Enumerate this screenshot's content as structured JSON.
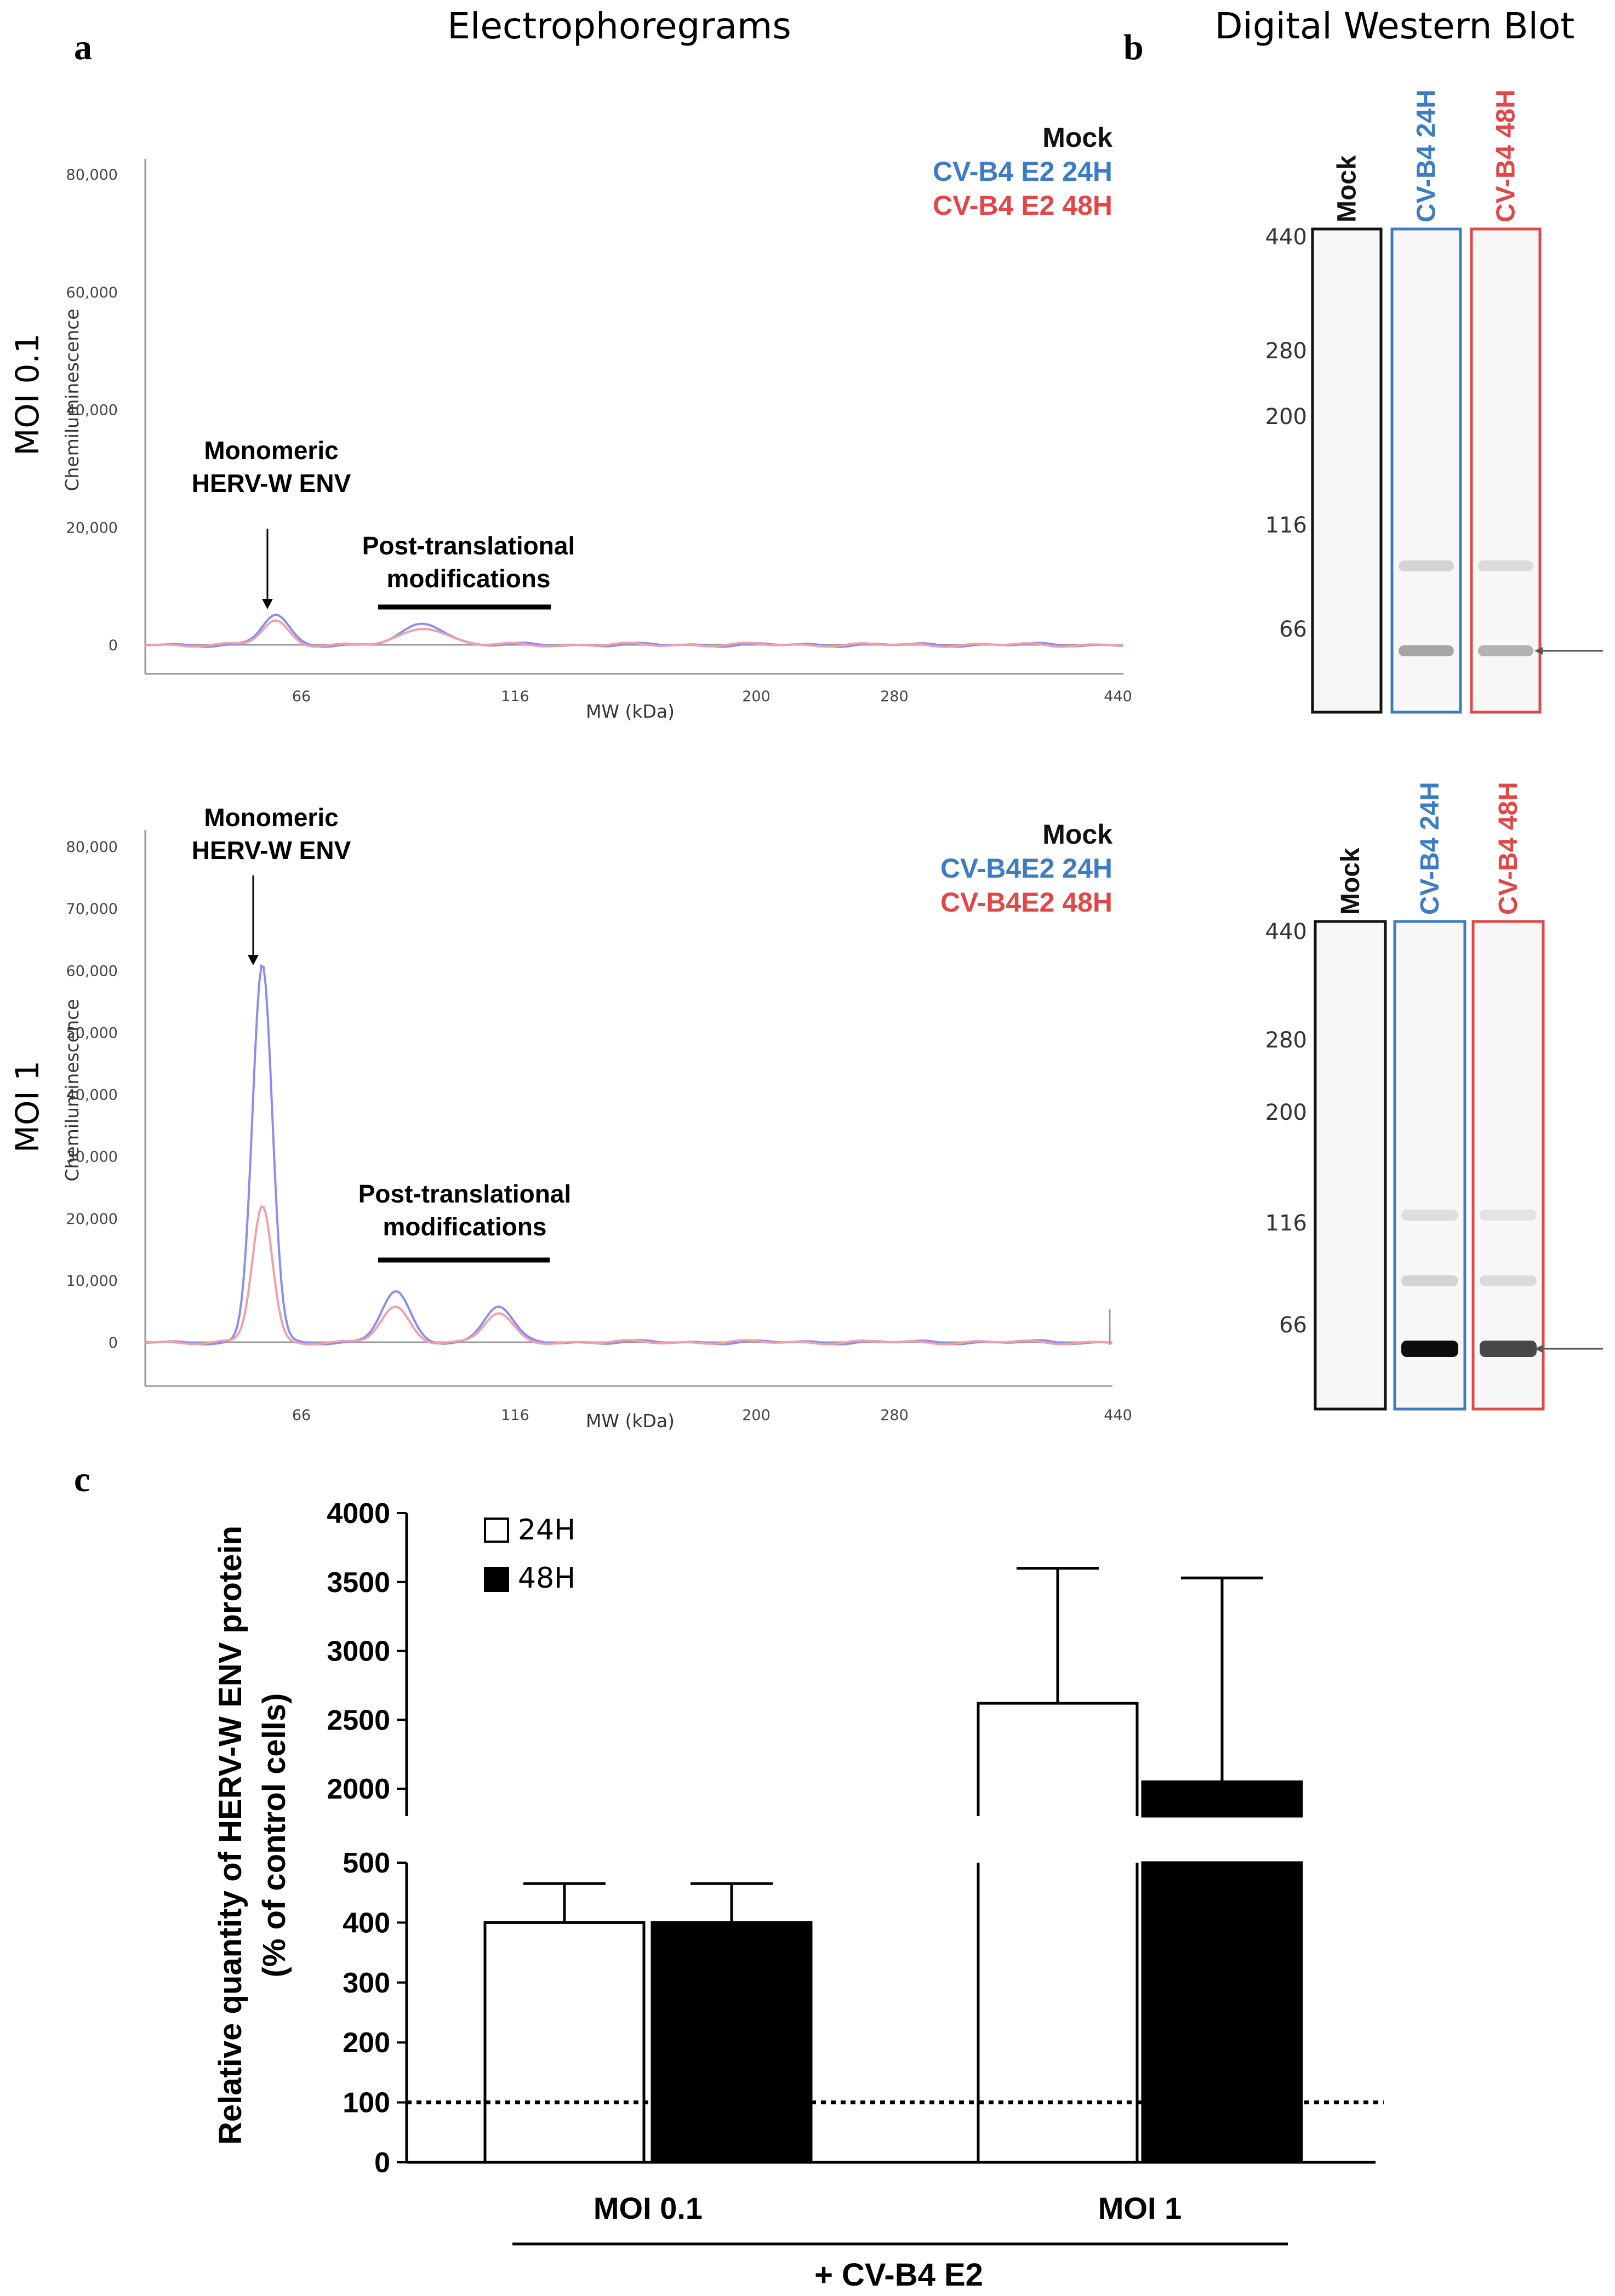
{
  "colors": {
    "mock": "#111111",
    "h24": "#3d7cc4",
    "h48": "#e04848",
    "trace24": "#8a8cf0",
    "trace48": "#f0a0a6",
    "ink": "#000000",
    "axis": "#9a9a9a"
  },
  "panel_a": {
    "letter": "a",
    "title": "Electrophoregrams",
    "monomeric_line1": "Monomeric",
    "monomeric_line2": "HERV-W ENV",
    "ptm_line1": "Post-translational",
    "ptm_line2": "modifications"
  },
  "panel_b": {
    "letter": "b",
    "title": "Digital Western Blot"
  },
  "panel_c": {
    "letter": "c",
    "legend_24": "24H",
    "legend_48": "48H",
    "group_label": "+ CV-B4 E2"
  },
  "chart_data": [
    {
      "id": "electro_moi01",
      "type": "line",
      "row_label": "MOI 0.1",
      "ylabel": "Chemiluminescence",
      "xlabel": "MW (kDa)",
      "ytick_labels": [
        "0",
        "20,000",
        "40,000",
        "60,000",
        "80,000"
      ],
      "xtick_labels": [
        "66",
        "116",
        "200",
        "280",
        "440"
      ],
      "legend": [
        "Mock",
        "CV-B4 E2 24H",
        "CV-B4 E2 48H"
      ],
      "series": [
        {
          "name": "Mock",
          "values": [
            0,
            0,
            0,
            0,
            0,
            0,
            0
          ]
        },
        {
          "name": "CV-B4 E2 24H",
          "peaks": [
            {
              "mw": 60,
              "value": 5000
            },
            {
              "mw": 95,
              "value": 3600
            }
          ]
        },
        {
          "name": "CV-B4 E2 48H",
          "peaks": [
            {
              "mw": 60,
              "value": 4000
            },
            {
              "mw": 95,
              "value": 3000
            }
          ]
        }
      ]
    },
    {
      "id": "electro_moi1",
      "type": "line",
      "row_label": "MOI 1",
      "ylabel": "Chemiluminescence",
      "xlabel": "MW (kDa)",
      "ytick_labels": [
        "0",
        "10,000",
        "20,000",
        "30,000",
        "40,000",
        "50,000",
        "60,000",
        "70,000",
        "80,000"
      ],
      "xtick_labels": [
        "66",
        "116",
        "200",
        "280",
        "440"
      ],
      "legend": [
        "Mock",
        "CV-B4E2 24H",
        "CV-B4E2 48H"
      ],
      "series": [
        {
          "name": "Mock",
          "values": [
            0,
            0,
            0,
            0,
            0,
            0,
            0
          ]
        },
        {
          "name": "CV-B4E2 24H",
          "peaks": [
            {
              "mw": 57,
              "value": 61000
            },
            {
              "mw": 88,
              "value": 8000
            },
            {
              "mw": 112,
              "value": 5800
            }
          ]
        },
        {
          "name": "CV-B4E2 48H",
          "peaks": [
            {
              "mw": 57,
              "value": 22000
            },
            {
              "mw": 88,
              "value": 5500
            },
            {
              "mw": 112,
              "value": 4500
            }
          ]
        }
      ]
    },
    {
      "id": "blot_moi01",
      "type": "other",
      "title": "Digital Western Blot",
      "lanes": [
        "Mock",
        "CV-B4 24H",
        "CV-B4 48H"
      ],
      "mw_labels": [
        "440",
        "280",
        "200",
        "116",
        "66"
      ],
      "bands": [
        {
          "lane": "CV-B4 24H",
          "mw": 60,
          "intensity": 0.35
        },
        {
          "lane": "CV-B4 24H",
          "mw": 98,
          "intensity": 0.15
        },
        {
          "lane": "CV-B4 48H",
          "mw": 60,
          "intensity": 0.3
        },
        {
          "lane": "CV-B4 48H",
          "mw": 98,
          "intensity": 0.12
        }
      ]
    },
    {
      "id": "blot_moi1",
      "type": "other",
      "lanes": [
        "Mock",
        "CV-B4 24H",
        "CV-B4 48H"
      ],
      "mw_labels": [
        "440",
        "280",
        "200",
        "116",
        "66"
      ],
      "bands": [
        {
          "lane": "CV-B4 24H",
          "mw": 57,
          "intensity": 1.0
        },
        {
          "lane": "CV-B4 24H",
          "mw": 88,
          "intensity": 0.15
        },
        {
          "lane": "CV-B4 24H",
          "mw": 112,
          "intensity": 0.1
        },
        {
          "lane": "CV-B4 48H",
          "mw": 57,
          "intensity": 0.75
        },
        {
          "lane": "CV-B4 48H",
          "mw": 88,
          "intensity": 0.12
        },
        {
          "lane": "CV-B4 48H",
          "mw": 112,
          "intensity": 0.08
        }
      ]
    },
    {
      "id": "bar_quant",
      "type": "bar",
      "ylabel": "Relative quantity of HERV-W ENV protein (% of control cells)",
      "categories": [
        "MOI 0.1",
        "MOI 1"
      ],
      "series": [
        {
          "name": "24H",
          "values": [
            400,
            2620
          ],
          "errors": [
            65,
            980
          ]
        },
        {
          "name": "48H",
          "values": [
            400,
            2050
          ],
          "errors": [
            65,
            1480
          ]
        }
      ],
      "ytick_labels_lower": [
        "0",
        "100",
        "200",
        "300",
        "400",
        "500"
      ],
      "ytick_labels_upper": [
        "2000",
        "2500",
        "3000",
        "3500",
        "4000"
      ],
      "y_break": [
        500,
        1850
      ],
      "ylim": [
        0,
        4000
      ],
      "reference_line": 100
    }
  ]
}
